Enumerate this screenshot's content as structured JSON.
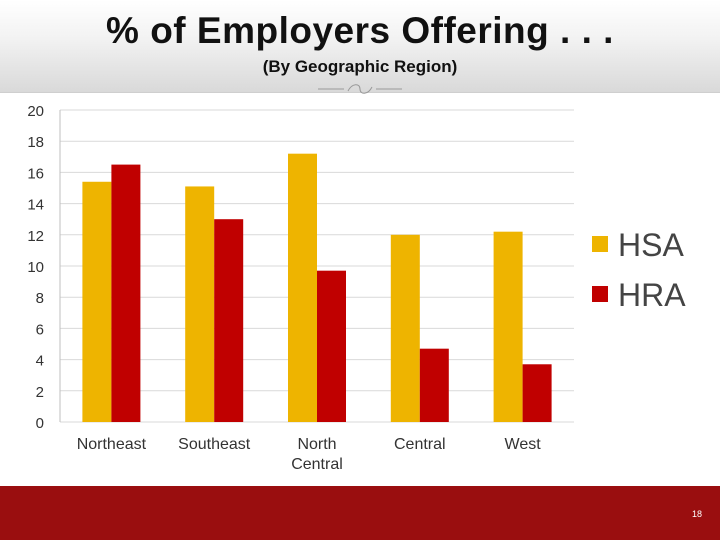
{
  "slide": {
    "title": "% of Employers Offering . . .",
    "subtitle": "(By Geographic Region)",
    "page_number": "18"
  },
  "colors": {
    "hsa": "#eeb400",
    "hra": "#c00000",
    "footer": "#9a0e0f",
    "grid": "#d9d9d9"
  },
  "chart_data": {
    "type": "bar",
    "categories": [
      "Northeast",
      "Southeast",
      "North Central",
      "Central",
      "West"
    ],
    "series": [
      {
        "name": "HSA",
        "values": [
          15.4,
          15.1,
          17.2,
          12.0,
          12.2
        ]
      },
      {
        "name": "HRA",
        "values": [
          16.5,
          13.0,
          9.7,
          4.7,
          3.7
        ]
      }
    ],
    "ylim": [
      0,
      20
    ],
    "yticks": [
      0,
      2,
      4,
      6,
      8,
      10,
      12,
      14,
      16,
      18,
      20
    ],
    "grid": true,
    "legend_position": "right"
  }
}
